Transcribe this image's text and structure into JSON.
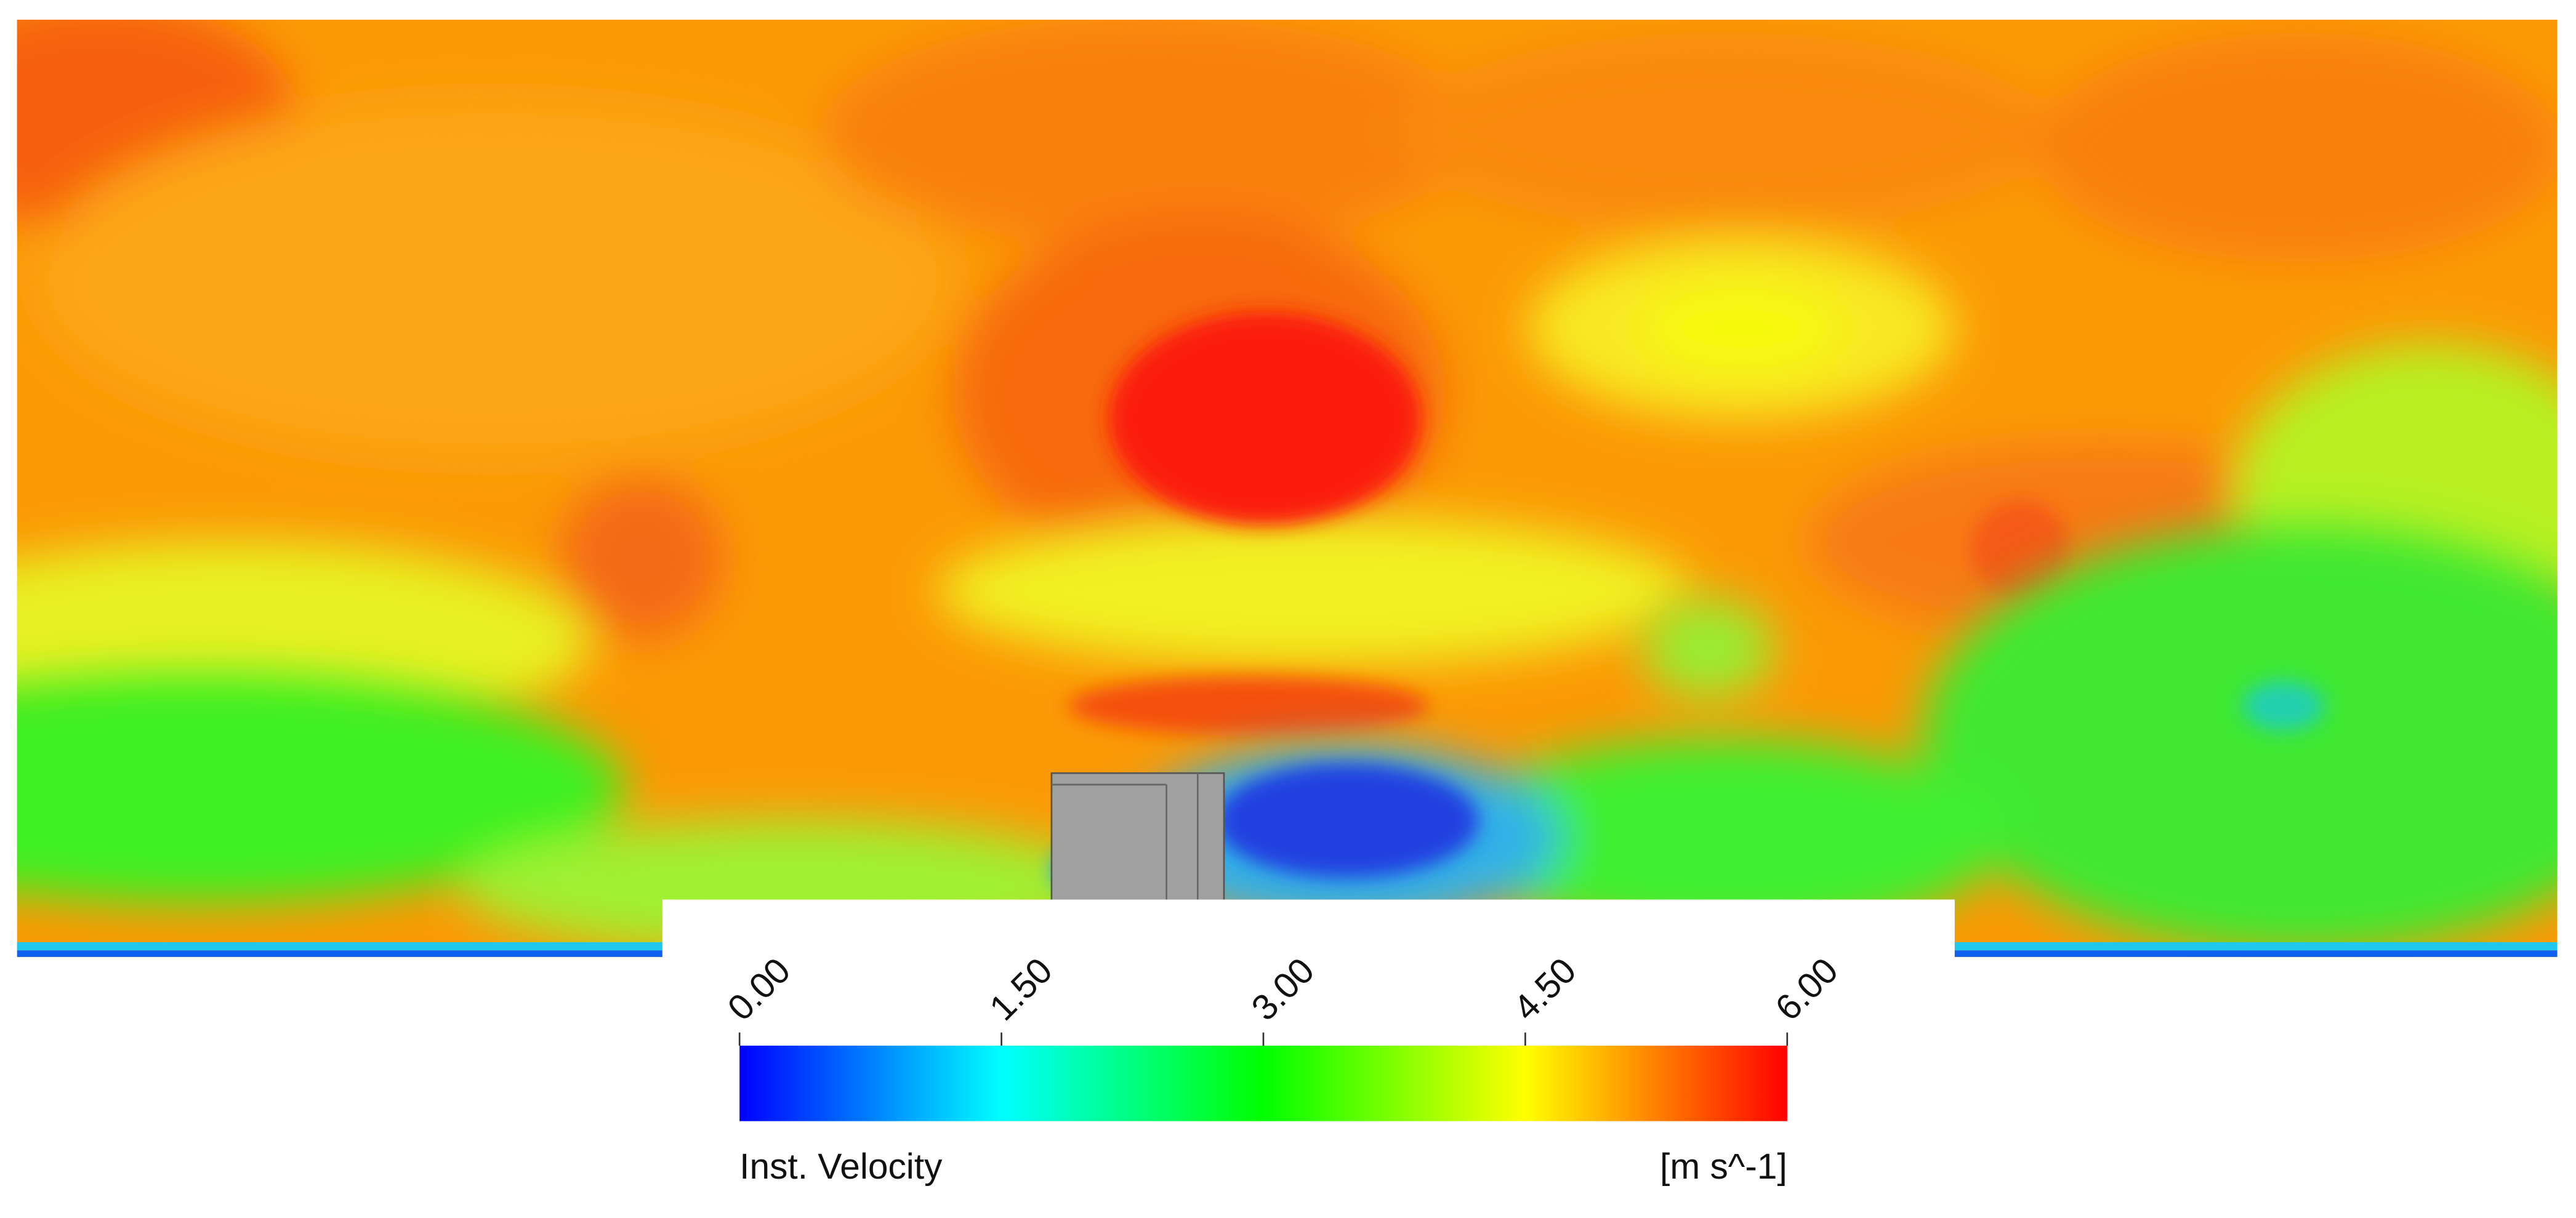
{
  "colorbar": {
    "title": "Inst. Velocity",
    "unit": "[m s^-1]",
    "range": [
      0,
      6
    ],
    "ticks": [
      {
        "value": 0,
        "label": "0.00"
      },
      {
        "value": 1.5,
        "label": "1.50"
      },
      {
        "value": 3,
        "label": "3.00"
      },
      {
        "value": 4.5,
        "label": "4.50"
      },
      {
        "value": 6,
        "label": "6.00"
      }
    ],
    "colors": [
      "#0000ff",
      "#00ffff",
      "#00ff00",
      "#ffff00",
      "#ff0000"
    ]
  }
}
